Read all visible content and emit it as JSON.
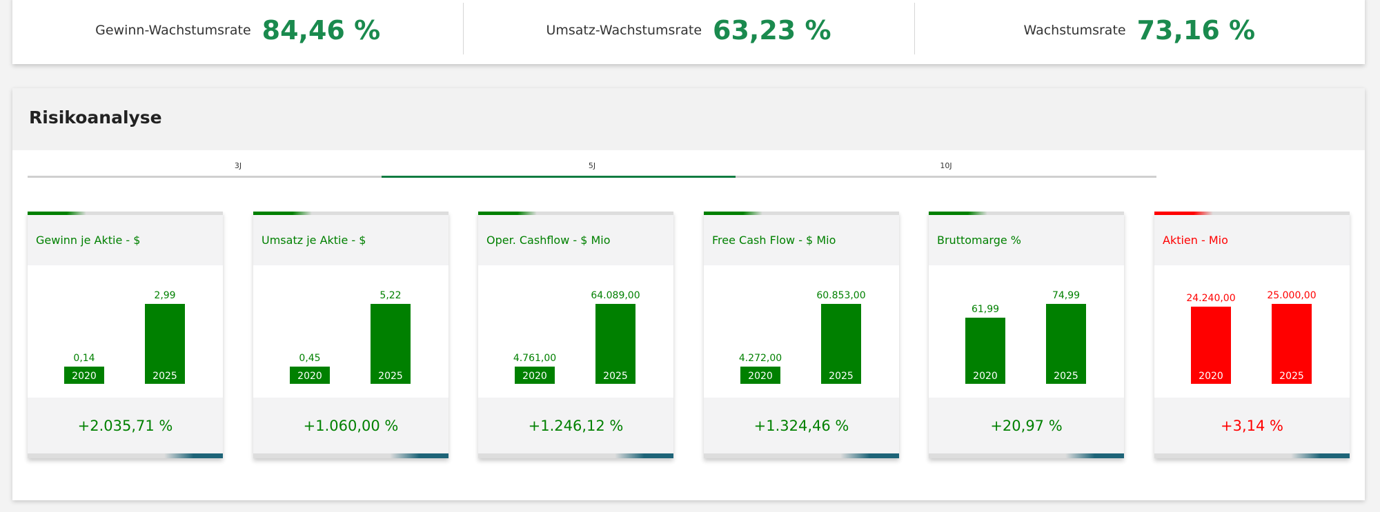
{
  "kpis": [
    {
      "label": "Gewinn-Wachstumsrate",
      "value": "84,46 %"
    },
    {
      "label": "Umsatz-Wachstumsrate",
      "value": "63,23 %"
    },
    {
      "label": "Wachstumsrate",
      "value": "73,16 %"
    }
  ],
  "panel": {
    "title": "Risikoanalyse"
  },
  "tabs": [
    {
      "label": "3J",
      "active": false
    },
    {
      "label": "5J",
      "active": true
    },
    {
      "label": "10J",
      "active": false
    }
  ],
  "colors": {
    "positive": "#008000",
    "negative": "#ff0000"
  },
  "cards": [
    {
      "title": "Gewinn je Aktie - $",
      "status": "positive",
      "bars": [
        {
          "year": "2020",
          "label": "0,14",
          "value": 0.14
        },
        {
          "year": "2025",
          "label": "2,99",
          "value": 2.99
        }
      ],
      "change": "+2.035,71 %"
    },
    {
      "title": "Umsatz je Aktie - $",
      "status": "positive",
      "bars": [
        {
          "year": "2020",
          "label": "0,45",
          "value": 0.45
        },
        {
          "year": "2025",
          "label": "5,22",
          "value": 5.22
        }
      ],
      "change": "+1.060,00 %"
    },
    {
      "title": "Oper. Cashflow - $ Mio",
      "status": "positive",
      "bars": [
        {
          "year": "2020",
          "label": "4.761,00",
          "value": 4761
        },
        {
          "year": "2025",
          "label": "64.089,00",
          "value": 64089
        }
      ],
      "change": "+1.246,12 %"
    },
    {
      "title": "Free Cash Flow - $ Mio",
      "status": "positive",
      "bars": [
        {
          "year": "2020",
          "label": "4.272,00",
          "value": 4272
        },
        {
          "year": "2025",
          "label": "60.853,00",
          "value": 60853
        }
      ],
      "change": "+1.324,46 %"
    },
    {
      "title": "Bruttomarge %",
      "status": "positive",
      "bars": [
        {
          "year": "2020",
          "label": "61,99",
          "value": 61.99
        },
        {
          "year": "2025",
          "label": "74,99",
          "value": 74.99
        }
      ],
      "change": "+20,97 %"
    },
    {
      "title": "Aktien - Mio",
      "status": "negative",
      "bars": [
        {
          "year": "2020",
          "label": "24.240,00",
          "value": 24240
        },
        {
          "year": "2025",
          "label": "25.000,00",
          "value": 25000
        }
      ],
      "change": "+3,14 %"
    }
  ]
}
